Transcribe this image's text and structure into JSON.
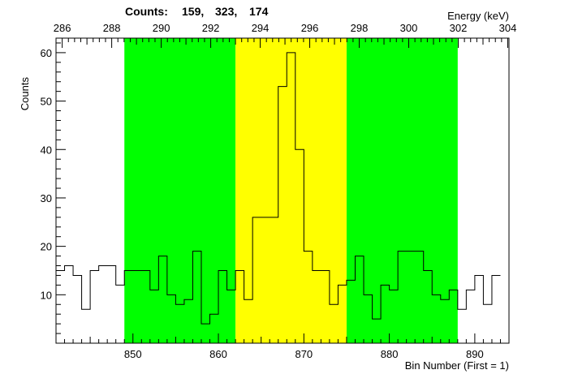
{
  "chart_data": {
    "type": "histogram",
    "header": {
      "prefix": "Counts:",
      "values": [
        "159,",
        "323,",
        "174"
      ]
    },
    "xlabel": "Bin Number (First = 1)",
    "ylabel": "Counts",
    "top_axis_label": "Energy (keV)",
    "xlim": [
      841,
      894
    ],
    "ylim": [
      0,
      63
    ],
    "top_xlim": [
      285.75,
      304.05
    ],
    "x_ticks": [
      850,
      860,
      870,
      880,
      890
    ],
    "y_ticks": [
      10,
      20,
      30,
      40,
      50,
      60
    ],
    "top_ticks": [
      286,
      288,
      290,
      292,
      294,
      296,
      298,
      300,
      302,
      304
    ],
    "regions": [
      {
        "name": "background-left",
        "x0": 849,
        "x1": 862,
        "color": "#00ff00"
      },
      {
        "name": "peak",
        "x0": 862,
        "x1": 875,
        "color": "#ffff00"
      },
      {
        "name": "background-right",
        "x0": 875,
        "x1": 888,
        "color": "#00ff00"
      }
    ],
    "bin_start": 841,
    "bin_width": 1,
    "counts": [
      15,
      16,
      14,
      7,
      15,
      16,
      16,
      12,
      15,
      15,
      15,
      11,
      18,
      10,
      8,
      9,
      19,
      4,
      6,
      15,
      11,
      15,
      9,
      26,
      26,
      26,
      53,
      60,
      40,
      19,
      15,
      15,
      8,
      12,
      13,
      18,
      10,
      5,
      12,
      11,
      19,
      19,
      19,
      15,
      10,
      9,
      11,
      7,
      11,
      14,
      8,
      14
    ]
  }
}
